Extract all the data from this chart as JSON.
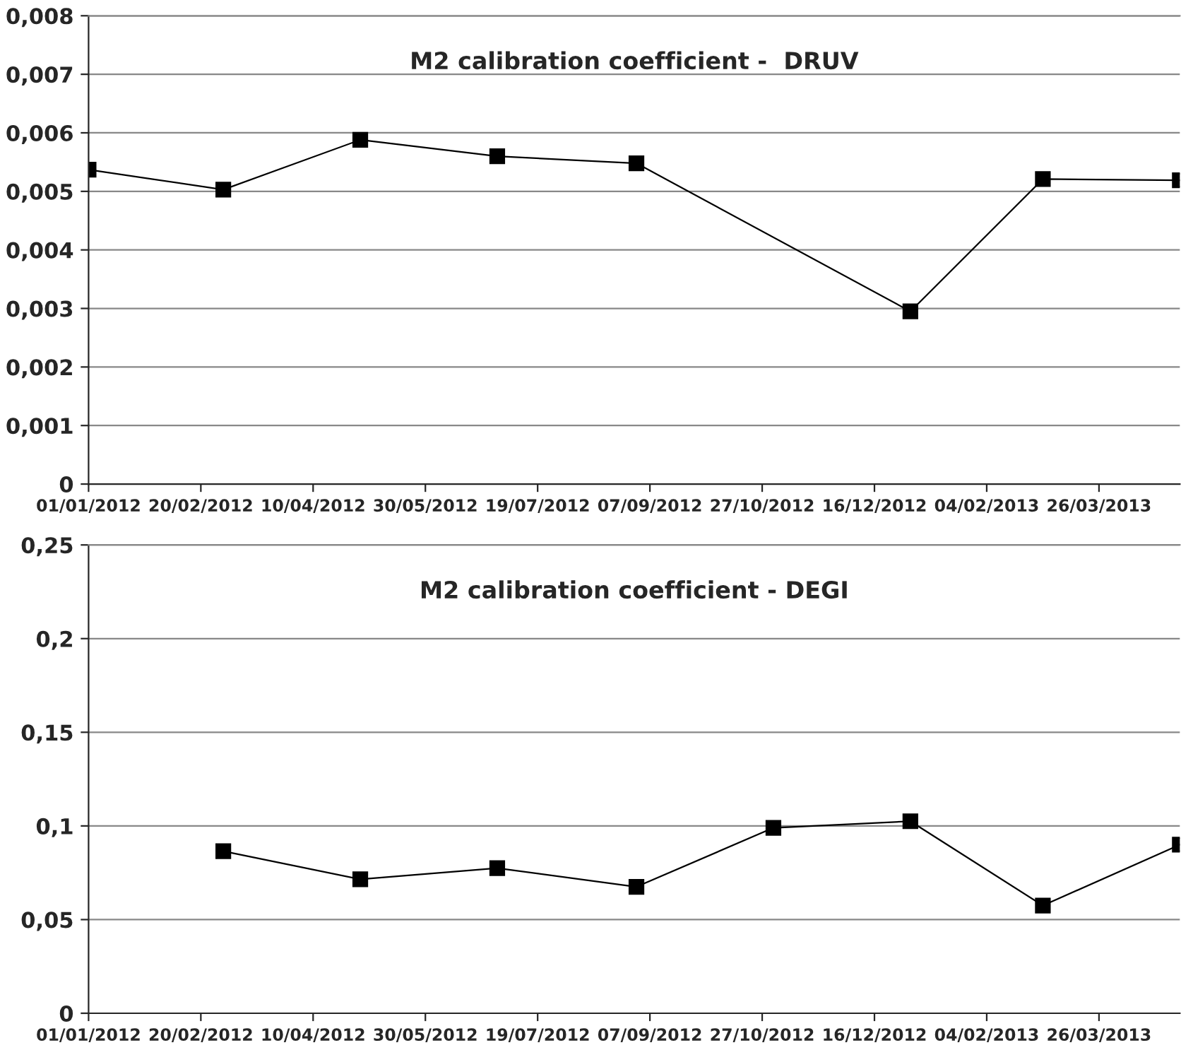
{
  "chart_data": [
    {
      "type": "line",
      "title": "M2 calibration coefficient -  DRUV",
      "marker": "square",
      "grid": "y",
      "legend": false,
      "x": [
        "2012-01-01",
        "2012-03-01",
        "2012-05-01",
        "2012-07-01",
        "2012-09-01",
        "2013-01-01",
        "2013-03-01",
        "2013-05-01"
      ],
      "series": [
        {
          "color": "#000000",
          "values": [
            0.00537,
            0.00503,
            0.00588,
            0.0056,
            0.00548,
            0.00295,
            0.00521,
            0.00519
          ]
        }
      ],
      "xlim": [
        "2012-01-01",
        "2013-05-01"
      ],
      "xticks": [
        {
          "value": "2012-01-01",
          "label": "01/01/2012"
        },
        {
          "value": "2012-02-20",
          "label": "20/02/2012"
        },
        {
          "value": "2012-04-10",
          "label": "10/04/2012"
        },
        {
          "value": "2012-05-30",
          "label": "30/05/2012"
        },
        {
          "value": "2012-07-19",
          "label": "19/07/2012"
        },
        {
          "value": "2012-09-07",
          "label": "07/09/2012"
        },
        {
          "value": "2012-10-27",
          "label": "27/10/2012"
        },
        {
          "value": "2012-12-16",
          "label": "16/12/2012"
        },
        {
          "value": "2013-02-04",
          "label": "04/02/2013"
        },
        {
          "value": "2013-03-26",
          "label": "26/03/2013"
        }
      ],
      "ylim": [
        0,
        0.008
      ],
      "yticks": [
        0,
        {
          "value": 0.001,
          "label": "0,001"
        },
        {
          "value": 0.002,
          "label": "0,002"
        },
        {
          "value": 0.003,
          "label": "0,003"
        },
        {
          "value": 0.004,
          "label": "0,004"
        },
        {
          "value": 0.005,
          "label": "0,005"
        },
        {
          "value": 0.006,
          "label": "0,006"
        },
        {
          "value": 0.007,
          "label": "0,007"
        },
        {
          "value": 0.008,
          "label": "0,008"
        }
      ]
    },
    {
      "type": "line",
      "title": "M2 calibration coefficient - DEGI",
      "marker": "square",
      "grid": "y",
      "legend": false,
      "x": [
        "2012-03-01",
        "2012-05-01",
        "2012-07-01",
        "2012-09-01",
        "2012-11-01",
        "2013-01-01",
        "2013-03-01",
        "2013-05-01"
      ],
      "series": [
        {
          "color": "#000000",
          "values": [
            0.0865,
            0.0715,
            0.0775,
            0.0675,
            0.099,
            0.1025,
            0.0575,
            0.09
          ]
        }
      ],
      "xlim": [
        "2012-01-01",
        "2013-05-01"
      ],
      "xticks": [
        {
          "value": "2012-01-01",
          "label": "01/01/2012"
        },
        {
          "value": "2012-02-20",
          "label": "20/02/2012"
        },
        {
          "value": "2012-04-10",
          "label": "10/04/2012"
        },
        {
          "value": "2012-05-30",
          "label": "30/05/2012"
        },
        {
          "value": "2012-07-19",
          "label": "19/07/2012"
        },
        {
          "value": "2012-09-07",
          "label": "07/09/2012"
        },
        {
          "value": "2012-10-27",
          "label": "27/10/2012"
        },
        {
          "value": "2012-12-16",
          "label": "16/12/2012"
        },
        {
          "value": "2013-02-04",
          "label": "04/02/2013"
        },
        {
          "value": "2013-03-26",
          "label": "26/03/2013"
        }
      ],
      "ylim": [
        0,
        0.25
      ],
      "yticks": [
        0,
        {
          "value": 0.05,
          "label": "0,05"
        },
        {
          "value": 0.1,
          "label": "0,1"
        },
        {
          "value": 0.15,
          "label": "0,15"
        },
        {
          "value": 0.2,
          "label": "0,2"
        },
        {
          "value": 0.25,
          "label": "0,25"
        }
      ]
    }
  ]
}
